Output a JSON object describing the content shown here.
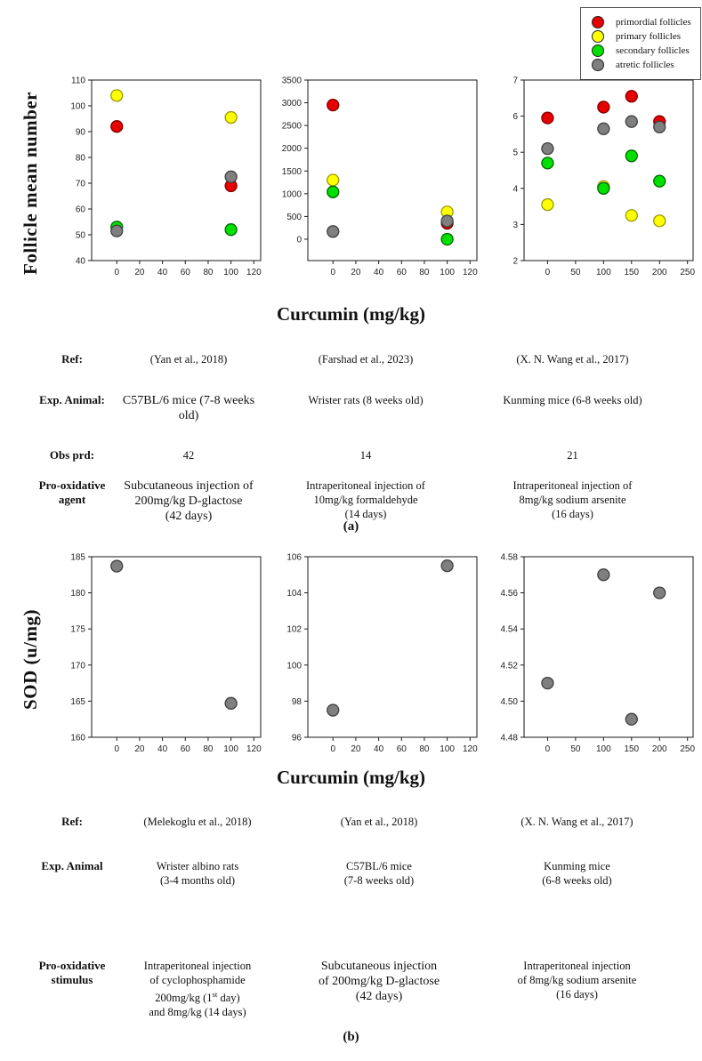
{
  "figure": {
    "section_a": {
      "ylabel": "Follicle mean number",
      "xlabel": "Curcumin (mg/kg)",
      "caption": "(a)"
    },
    "section_b": {
      "ylabel": "SOD (u/mg)",
      "xlabel": "Curcumin (mg/kg)",
      "caption": "(b)"
    }
  },
  "legend": {
    "items": [
      {
        "name": "primordial-follicles-swatch",
        "label": "primordial follicles",
        "color": "#e60000",
        "stroke": "#222222"
      },
      {
        "name": "primary-follicles-swatch",
        "label": "primary follicles",
        "color": "#ffff00",
        "stroke": "#222222"
      },
      {
        "name": "secondary-follicles-swatch",
        "label": "secondary follicles",
        "color": "#00e000",
        "stroke": "#222222"
      },
      {
        "name": "atretic-follicles-swatch",
        "label": "atretic follicles",
        "color": "#7f7f7f",
        "stroke": "#222222"
      }
    ]
  },
  "chart_data": [
    {
      "id": "a1",
      "type": "scatter",
      "ylabel": "Follicle mean number",
      "xlabel": "Curcumin (mg/kg)",
      "xlim": [
        -22,
        126
      ],
      "ylim": [
        40,
        110
      ],
      "xticks": [
        "0",
        "20",
        "40",
        "60",
        "80",
        "100",
        "120"
      ],
      "yticks": [
        "40",
        "50",
        "60",
        "70",
        "80",
        "90",
        "100",
        "110"
      ],
      "series": [
        {
          "name": "primordial follicles",
          "color": "#e60000",
          "stroke": "#800000",
          "points": [
            [
              0,
              92
            ],
            [
              100,
              69
            ]
          ]
        },
        {
          "name": "primary follicles",
          "color": "#ffff00",
          "stroke": "#999900",
          "points": [
            [
              0,
              104
            ],
            [
              100,
              95.5
            ]
          ]
        },
        {
          "name": "secondary follicles",
          "color": "#00e000",
          "stroke": "#006600",
          "points": [
            [
              0,
              53
            ],
            [
              100,
              52
            ]
          ]
        },
        {
          "name": "atretic follicles",
          "color": "#7f7f7f",
          "stroke": "#404040",
          "points": [
            [
              0,
              51.5
            ],
            [
              100,
              72.5
            ]
          ]
        }
      ]
    },
    {
      "id": "a2",
      "type": "scatter",
      "ylabel": "Follicle mean number",
      "xlabel": "Curcumin (mg/kg)",
      "xlim": [
        -22,
        126
      ],
      "ylim": [
        -470,
        3500
      ],
      "xticks": [
        "0",
        "20",
        "40",
        "60",
        "80",
        "100",
        "120"
      ],
      "yticks": [
        "0",
        "500",
        "1000",
        "1500",
        "2000",
        "2500",
        "3000",
        "3500"
      ],
      "series": [
        {
          "name": "primordial follicles",
          "color": "#e60000",
          "stroke": "#800000",
          "points": [
            [
              0,
              2950
            ],
            [
              100,
              350
            ]
          ]
        },
        {
          "name": "primary follicles",
          "color": "#ffff00",
          "stroke": "#999900",
          "points": [
            [
              0,
              1300
            ],
            [
              100,
              600
            ]
          ]
        },
        {
          "name": "secondary follicles",
          "color": "#00e000",
          "stroke": "#006600",
          "points": [
            [
              0,
              1040
            ],
            [
              100,
              0
            ]
          ]
        },
        {
          "name": "atretic follicles",
          "color": "#7f7f7f",
          "stroke": "#404040",
          "points": [
            [
              0,
              170
            ],
            [
              100,
              400
            ]
          ]
        }
      ]
    },
    {
      "id": "a3",
      "type": "scatter",
      "ylabel": "Follicle mean number",
      "xlabel": "Curcumin (mg/kg)",
      "xlim": [
        -42,
        260
      ],
      "ylim": [
        2,
        7
      ],
      "xticks": [
        "0",
        "50",
        "100",
        "150",
        "200",
        "250"
      ],
      "yticks": [
        "2",
        "3",
        "4",
        "5",
        "6",
        "7"
      ],
      "series": [
        {
          "name": "primordial follicles",
          "color": "#e60000",
          "stroke": "#800000",
          "points": [
            [
              0,
              5.95
            ],
            [
              100,
              6.25
            ],
            [
              150,
              6.55
            ],
            [
              200,
              5.85
            ]
          ]
        },
        {
          "name": "primary follicles",
          "color": "#ffff00",
          "stroke": "#999900",
          "points": [
            [
              0,
              3.55
            ],
            [
              100,
              4.05
            ],
            [
              150,
              3.25
            ],
            [
              200,
              3.1
            ]
          ]
        },
        {
          "name": "secondary follicles",
          "color": "#00e000",
          "stroke": "#006600",
          "points": [
            [
              0,
              4.7
            ],
            [
              100,
              4.0
            ],
            [
              150,
              4.9
            ],
            [
              200,
              4.2
            ]
          ]
        },
        {
          "name": "atretic follicles",
          "color": "#7f7f7f",
          "stroke": "#404040",
          "points": [
            [
              0,
              5.1
            ],
            [
              100,
              5.65
            ],
            [
              150,
              5.85
            ],
            [
              200,
              5.7
            ]
          ]
        }
      ]
    },
    {
      "id": "b1",
      "type": "scatter",
      "ylabel": "SOD (u/mg)",
      "xlabel": "Curcumin (mg/kg)",
      "xlim": [
        -22,
        126
      ],
      "ylim": [
        160,
        185
      ],
      "xticks": [
        "0",
        "20",
        "40",
        "60",
        "80",
        "100",
        "120"
      ],
      "yticks": [
        "160",
        "165",
        "170",
        "175",
        "180",
        "185"
      ],
      "series": [
        {
          "name": "SOD",
          "color": "#7f7f7f",
          "stroke": "#404040",
          "points": [
            [
              0,
              183.7
            ],
            [
              100,
              164.7
            ]
          ]
        }
      ]
    },
    {
      "id": "b2",
      "type": "scatter",
      "ylabel": "SOD (u/mg)",
      "xlabel": "Curcumin (mg/kg)",
      "xlim": [
        -22,
        126
      ],
      "ylim": [
        96,
        106
      ],
      "xticks": [
        "0",
        "20",
        "40",
        "60",
        "80",
        "100",
        "120"
      ],
      "yticks": [
        "96",
        "98",
        "100",
        "102",
        "104",
        "106"
      ],
      "series": [
        {
          "name": "SOD",
          "color": "#7f7f7f",
          "stroke": "#404040",
          "points": [
            [
              0,
              97.5
            ],
            [
              100,
              105.5
            ]
          ]
        }
      ]
    },
    {
      "id": "b3",
      "type": "scatter",
      "ylabel": "SOD (u/mg)",
      "xlabel": "Curcumin (mg/kg)",
      "xlim": [
        -42,
        260
      ],
      "ylim": [
        4.48,
        4.58
      ],
      "xticks": [
        "0",
        "50",
        "100",
        "150",
        "200",
        "250"
      ],
      "yticks": [
        "4.48",
        "4.50",
        "4.52",
        "4.54",
        "4.56",
        "4.58"
      ],
      "series": [
        {
          "name": "SOD",
          "color": "#7f7f7f",
          "stroke": "#404040",
          "points": [
            [
              0,
              4.51
            ],
            [
              100,
              4.57
            ],
            [
              150,
              4.49
            ],
            [
              200,
              4.56
            ]
          ]
        }
      ]
    }
  ],
  "table_a": {
    "rows": [
      {
        "label": [
          "Ref:"
        ],
        "cells": [
          {
            "lines": [
              "(Yan et al., 2018)"
            ]
          },
          {
            "lines": [
              "(Farshad et al., 2023)"
            ]
          },
          {
            "lines": [
              "(X. N. Wang et al., 2017)"
            ]
          }
        ]
      },
      {
        "label": [
          "Exp. Animal:"
        ],
        "cells": [
          {
            "lines": [
              "C57BL/6 mice (7-8 weeks old)"
            ],
            "large": true
          },
          {
            "lines": [
              "Wrister rats (8 weeks old)"
            ]
          },
          {
            "lines": [
              "Kunming mice (6-8 weeks old)"
            ]
          }
        ]
      },
      {
        "label": [
          "Obs prd:"
        ],
        "cells": [
          {
            "lines": [
              "42"
            ]
          },
          {
            "lines": [
              "14"
            ]
          },
          {
            "lines": [
              "21"
            ]
          }
        ]
      },
      {
        "label": [
          "Pro-oxidative",
          "agent"
        ],
        "cells": [
          {
            "lines": [
              "Subcutaneous injection of",
              "200mg/kg D-glactose",
              "(42 days)"
            ],
            "large": true
          },
          {
            "lines": [
              "Intraperitoneal injection of",
              "10mg/kg formaldehyde",
              "(14 days)"
            ]
          },
          {
            "lines": [
              "Intraperitoneal injection of",
              "8mg/kg sodium arsenite",
              "(16 days)"
            ]
          }
        ]
      }
    ]
  },
  "table_b": {
    "rows": [
      {
        "label": [
          "Ref:"
        ],
        "cells": [
          {
            "lines": [
              "(Melekoglu et al., 2018)"
            ]
          },
          {
            "lines": [
              "(Yan et al., 2018)"
            ]
          },
          {
            "lines": [
              "(X. N. Wang et al., 2017)"
            ]
          }
        ]
      },
      {
        "label": [
          "Exp. Animal"
        ],
        "cells": [
          {
            "lines": [
              "Wrister albino rats",
              "(3-4 months old)"
            ]
          },
          {
            "lines": [
              "C57BL/6 mice",
              "(7-8 weeks old)"
            ]
          },
          {
            "lines": [
              "Kunming mice",
              "(6-8 weeks old)"
            ]
          }
        ]
      },
      {
        "label": [
          "Pro-oxidative",
          "stimulus"
        ],
        "cells": [
          {
            "lines": [
              "Intraperitoneal injection",
              "of cyclophosphamide",
              "200mg/kg (1^st^ day)",
              "and 8mg/kg (14 days)"
            ]
          },
          {
            "lines": [
              "Subcutaneous injection",
              "of 200mg/kg D-glactose",
              "(42 days)"
            ],
            "large": true
          },
          {
            "lines": [
              "Intraperitoneal injection",
              "of 8mg/kg sodium arsenite",
              "(16 days)"
            ]
          }
        ]
      }
    ]
  }
}
